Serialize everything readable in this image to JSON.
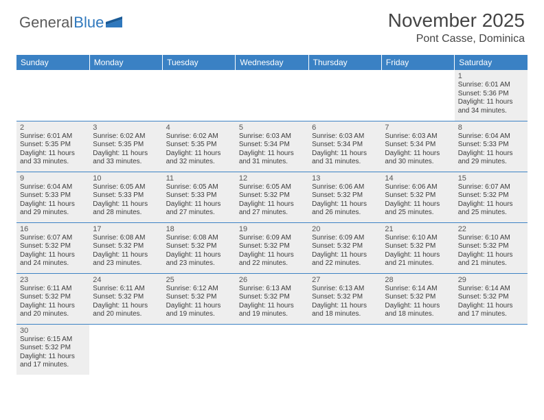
{
  "logo": {
    "text1": "General",
    "text2": "Blue"
  },
  "title": "November 2025",
  "location": "Pont Casse, Dominica",
  "colors": {
    "header_bg": "#3a81c4",
    "header_text": "#ffffff",
    "cell_bg": "#eeeeee",
    "border": "#3a81c4",
    "text": "#3c3c3c"
  },
  "weekdays": [
    "Sunday",
    "Monday",
    "Tuesday",
    "Wednesday",
    "Thursday",
    "Friday",
    "Saturday"
  ],
  "weeks": [
    [
      null,
      null,
      null,
      null,
      null,
      null,
      {
        "n": "1",
        "sr": "6:01 AM",
        "ss": "5:36 PM",
        "dl": "11 hours and 34 minutes."
      }
    ],
    [
      {
        "n": "2",
        "sr": "6:01 AM",
        "ss": "5:35 PM",
        "dl": "11 hours and 33 minutes."
      },
      {
        "n": "3",
        "sr": "6:02 AM",
        "ss": "5:35 PM",
        "dl": "11 hours and 33 minutes."
      },
      {
        "n": "4",
        "sr": "6:02 AM",
        "ss": "5:35 PM",
        "dl": "11 hours and 32 minutes."
      },
      {
        "n": "5",
        "sr": "6:03 AM",
        "ss": "5:34 PM",
        "dl": "11 hours and 31 minutes."
      },
      {
        "n": "6",
        "sr": "6:03 AM",
        "ss": "5:34 PM",
        "dl": "11 hours and 31 minutes."
      },
      {
        "n": "7",
        "sr": "6:03 AM",
        "ss": "5:34 PM",
        "dl": "11 hours and 30 minutes."
      },
      {
        "n": "8",
        "sr": "6:04 AM",
        "ss": "5:33 PM",
        "dl": "11 hours and 29 minutes."
      }
    ],
    [
      {
        "n": "9",
        "sr": "6:04 AM",
        "ss": "5:33 PM",
        "dl": "11 hours and 29 minutes."
      },
      {
        "n": "10",
        "sr": "6:05 AM",
        "ss": "5:33 PM",
        "dl": "11 hours and 28 minutes."
      },
      {
        "n": "11",
        "sr": "6:05 AM",
        "ss": "5:33 PM",
        "dl": "11 hours and 27 minutes."
      },
      {
        "n": "12",
        "sr": "6:05 AM",
        "ss": "5:32 PM",
        "dl": "11 hours and 27 minutes."
      },
      {
        "n": "13",
        "sr": "6:06 AM",
        "ss": "5:32 PM",
        "dl": "11 hours and 26 minutes."
      },
      {
        "n": "14",
        "sr": "6:06 AM",
        "ss": "5:32 PM",
        "dl": "11 hours and 25 minutes."
      },
      {
        "n": "15",
        "sr": "6:07 AM",
        "ss": "5:32 PM",
        "dl": "11 hours and 25 minutes."
      }
    ],
    [
      {
        "n": "16",
        "sr": "6:07 AM",
        "ss": "5:32 PM",
        "dl": "11 hours and 24 minutes."
      },
      {
        "n": "17",
        "sr": "6:08 AM",
        "ss": "5:32 PM",
        "dl": "11 hours and 23 minutes."
      },
      {
        "n": "18",
        "sr": "6:08 AM",
        "ss": "5:32 PM",
        "dl": "11 hours and 23 minutes."
      },
      {
        "n": "19",
        "sr": "6:09 AM",
        "ss": "5:32 PM",
        "dl": "11 hours and 22 minutes."
      },
      {
        "n": "20",
        "sr": "6:09 AM",
        "ss": "5:32 PM",
        "dl": "11 hours and 22 minutes."
      },
      {
        "n": "21",
        "sr": "6:10 AM",
        "ss": "5:32 PM",
        "dl": "11 hours and 21 minutes."
      },
      {
        "n": "22",
        "sr": "6:10 AM",
        "ss": "5:32 PM",
        "dl": "11 hours and 21 minutes."
      }
    ],
    [
      {
        "n": "23",
        "sr": "6:11 AM",
        "ss": "5:32 PM",
        "dl": "11 hours and 20 minutes."
      },
      {
        "n": "24",
        "sr": "6:11 AM",
        "ss": "5:32 PM",
        "dl": "11 hours and 20 minutes."
      },
      {
        "n": "25",
        "sr": "6:12 AM",
        "ss": "5:32 PM",
        "dl": "11 hours and 19 minutes."
      },
      {
        "n": "26",
        "sr": "6:13 AM",
        "ss": "5:32 PM",
        "dl": "11 hours and 19 minutes."
      },
      {
        "n": "27",
        "sr": "6:13 AM",
        "ss": "5:32 PM",
        "dl": "11 hours and 18 minutes."
      },
      {
        "n": "28",
        "sr": "6:14 AM",
        "ss": "5:32 PM",
        "dl": "11 hours and 18 minutes."
      },
      {
        "n": "29",
        "sr": "6:14 AM",
        "ss": "5:32 PM",
        "dl": "11 hours and 17 minutes."
      }
    ],
    [
      {
        "n": "30",
        "sr": "6:15 AM",
        "ss": "5:32 PM",
        "dl": "11 hours and 17 minutes."
      },
      null,
      null,
      null,
      null,
      null,
      null
    ]
  ],
  "labels": {
    "sunrise": "Sunrise:",
    "sunset": "Sunset:",
    "daylight": "Daylight:"
  }
}
